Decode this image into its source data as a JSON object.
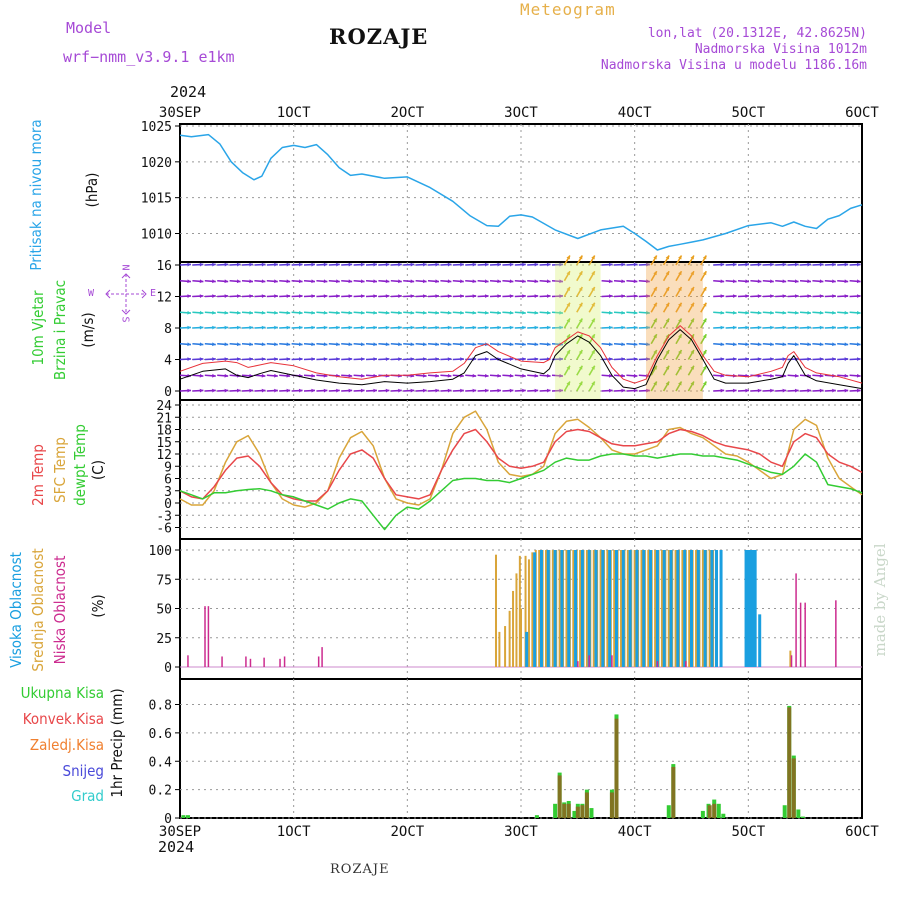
{
  "header": {
    "model_label": "Model",
    "model_name": "wrf−nmm_v3.9.1  e1km",
    "station": "ROZAJE",
    "meteogram": "Meteogram",
    "lonlat": "lon,lat (20.1312E, 42.8625N)",
    "altitude": "Nadmorska Visina 1012m",
    "model_altitude": "Nadmorska Visina u modelu 1186.16m"
  },
  "time_axis": {
    "year": "2024",
    "ticks": [
      "30SEP",
      "1OCT",
      "2OCT",
      "3OCT",
      "4OCT",
      "5OCT",
      "6OCT"
    ]
  },
  "panel_labels": {
    "pressure_name": "Pritisak na nivou mora",
    "pressure_unit": "(hPa)",
    "wind_name_1": "10m Vjetar",
    "wind_name_2": "Brzina i Pravac",
    "wind_unit": "(m/s)",
    "temp_2m": "2m Temp",
    "temp_sfc": "SFC Temp",
    "temp_dew": "dewpt Temp",
    "temp_unit": "(C)",
    "cloud_high": "Visoka Oblacnost",
    "cloud_mid": "Srednja Oblacnost",
    "cloud_low": "Niska Oblacnost",
    "cloud_unit": "(%)",
    "precip_unit": "1hr Precip (mm)",
    "precip_total": "Ukupna Kisa",
    "precip_conv": "Konvek.Kisa",
    "precip_frz": "Zaledj.Kisa",
    "precip_snow": "Snijeg",
    "precip_grad": "Grad",
    "compass": "N",
    "compass_w": "W",
    "compass_e": "E",
    "compass_s": "S"
  },
  "footer": {
    "station": "ROZAJE",
    "made_by": "made by Angel"
  },
  "colors": {
    "pressure": "#2aa5e8",
    "speed": "#000000",
    "gust": "#e8333a",
    "temp2m": "#e8474a",
    "sfc": "#d9a53a",
    "dew": "#33cc33",
    "cloud_high": "#1a9fe0",
    "cloud_mid": "#d9a53a",
    "cloud_low": "#cc2b8f",
    "total": "#33cc33",
    "conv": "#e8474a",
    "frz": "#f08030",
    "snow": "#4a4ad9",
    "grad": "#33cccc",
    "label_purple": "#a64ad6"
  },
  "chart_data": [
    {
      "type": "line",
      "title": "Pritisak na nivou mora",
      "ylabel": "(hPa)",
      "ylim": [
        1007,
        1026
      ],
      "yticks": [
        1010,
        1015,
        1020,
        1025
      ],
      "xlim_days": [
        0,
        6
      ],
      "x": [
        0,
        0.1,
        0.25,
        0.35,
        0.45,
        0.55,
        0.65,
        0.72,
        0.8,
        0.9,
        1.0,
        1.1,
        1.2,
        1.3,
        1.4,
        1.5,
        1.6,
        1.8,
        2.0,
        2.2,
        2.4,
        2.55,
        2.7,
        2.8,
        2.9,
        3.0,
        3.1,
        3.3,
        3.5,
        3.7,
        3.9,
        4.0,
        4.1,
        4.2,
        4.3,
        4.4,
        4.5,
        4.6,
        4.8,
        5.0,
        5.2,
        5.3,
        5.4,
        5.5,
        5.6,
        5.7,
        5.8,
        5.9,
        6.0
      ],
      "series": [
        {
          "values": [
            1023.7,
            1023.5,
            1023.8,
            1022.5,
            1020.0,
            1018.5,
            1017.5,
            1018.0,
            1020.5,
            1022.0,
            1022.3,
            1022.0,
            1022.4,
            1021.0,
            1019.2,
            1018.1,
            1018.3,
            1017.7,
            1017.9,
            1016.4,
            1014.5,
            1012.5,
            1011.1,
            1011.0,
            1012.4,
            1012.6,
            1012.3,
            1010.5,
            1009.3,
            1010.5,
            1011.0,
            1010.0,
            1008.9,
            1007.7,
            1008.2,
            1008.5,
            1008.8,
            1009.1,
            1010.0,
            1011.1,
            1011.5,
            1011.0,
            1011.6,
            1011.0,
            1010.7,
            1012.0,
            1012.5,
            1013.5,
            1014.0
          ]
        }
      ]
    },
    {
      "type": "line",
      "title": "10m Vjetar Brzina i Pravac",
      "ylabel": "(m/s)",
      "ylim": [
        -1,
        16
      ],
      "yticks": [
        0,
        4,
        8,
        12,
        16
      ],
      "x": [
        0,
        0.2,
        0.4,
        0.5,
        0.6,
        0.7,
        0.8,
        1.0,
        1.2,
        1.4,
        1.6,
        1.8,
        2.0,
        2.2,
        2.4,
        2.5,
        2.6,
        2.7,
        2.8,
        3.0,
        3.2,
        3.25,
        3.3,
        3.4,
        3.5,
        3.6,
        3.7,
        3.8,
        3.9,
        4.0,
        4.1,
        4.2,
        4.3,
        4.4,
        4.5,
        4.6,
        4.7,
        4.8,
        5.0,
        5.2,
        5.3,
        5.35,
        5.4,
        5.5,
        5.6,
        5.8,
        6.0
      ],
      "series": [
        {
          "name": "speed",
          "values": [
            1.5,
            2.5,
            2.8,
            2.0,
            1.7,
            2.2,
            2.6,
            2.0,
            1.4,
            1.0,
            0.8,
            1.2,
            1.0,
            1.2,
            1.5,
            2.3,
            4.5,
            5.0,
            4.0,
            2.8,
            2.2,
            2.8,
            4.5,
            6.0,
            7.0,
            6.2,
            4.5,
            2.0,
            0.5,
            0.3,
            0.8,
            4.0,
            6.5,
            7.8,
            6.5,
            4.0,
            1.5,
            1.0,
            1.0,
            1.5,
            1.8,
            3.5,
            4.5,
            2.0,
            1.3,
            0.8,
            0.3
          ]
        },
        {
          "name": "gust",
          "values": [
            2.5,
            3.5,
            3.8,
            3.6,
            3.0,
            3.3,
            3.6,
            3.2,
            2.3,
            1.8,
            1.5,
            2.0,
            2.0,
            2.3,
            2.5,
            3.5,
            5.5,
            6.0,
            5.0,
            3.8,
            3.6,
            4.0,
            5.5,
            6.5,
            7.5,
            7.0,
            5.5,
            3.0,
            1.5,
            1.0,
            1.5,
            4.5,
            7.0,
            8.3,
            7.0,
            4.5,
            2.5,
            2.0,
            1.8,
            2.5,
            3.0,
            4.5,
            5.0,
            3.0,
            2.3,
            1.8,
            1.0
          ]
        }
      ]
    },
    {
      "type": "line",
      "title": "2m Temp / SFC Temp / dewpt Temp",
      "ylabel": "(C)",
      "ylim": [
        -7.5,
        24
      ],
      "yticks": [
        -6,
        -3,
        0,
        3,
        6,
        9,
        12,
        15,
        18,
        21,
        24
      ],
      "x": [
        0,
        0.1,
        0.2,
        0.3,
        0.4,
        0.5,
        0.6,
        0.7,
        0.8,
        0.9,
        1.0,
        1.1,
        1.2,
        1.3,
        1.4,
        1.5,
        1.6,
        1.7,
        1.8,
        1.9,
        2.0,
        2.1,
        2.2,
        2.3,
        2.4,
        2.5,
        2.6,
        2.7,
        2.8,
        2.9,
        3.0,
        3.1,
        3.2,
        3.3,
        3.4,
        3.5,
        3.6,
        3.7,
        3.8,
        3.9,
        4.0,
        4.1,
        4.2,
        4.3,
        4.4,
        4.5,
        4.6,
        4.7,
        4.8,
        4.9,
        5.0,
        5.1,
        5.2,
        5.3,
        5.4,
        5.5,
        5.6,
        5.7,
        5.8,
        5.9,
        6.0
      ],
      "series": [
        {
          "name": "2m Temp",
          "values": [
            3,
            1.5,
            1,
            4,
            8,
            11,
            11.5,
            9,
            5,
            2,
            1,
            0.5,
            0.5,
            3,
            8,
            12,
            13,
            11,
            6,
            2,
            1.5,
            1,
            2,
            8,
            13,
            17,
            18,
            15,
            11,
            9,
            8.5,
            9,
            10,
            15,
            17.5,
            18,
            17.5,
            16,
            14.5,
            14,
            14,
            14.5,
            15,
            17,
            18,
            17.5,
            16.5,
            15,
            14,
            13.5,
            13,
            12,
            10,
            9,
            15,
            17,
            16,
            12,
            10,
            9,
            7.5
          ]
        },
        {
          "name": "SFC Temp",
          "values": [
            1,
            -0.5,
            -0.5,
            3,
            10,
            15,
            16.5,
            12,
            5,
            1,
            -0.5,
            -1,
            0,
            3,
            11,
            16,
            17.5,
            14,
            6,
            1,
            0,
            -0.5,
            1,
            8,
            17,
            21,
            22.5,
            18,
            10,
            7,
            6.5,
            7,
            9,
            17,
            20,
            20.5,
            18.5,
            16,
            13,
            12,
            12,
            13,
            14,
            18,
            18.5,
            17,
            16,
            14,
            12,
            11.5,
            10,
            8,
            6,
            7,
            18,
            20.5,
            19,
            11,
            6,
            4,
            2
          ]
        },
        {
          "name": "dewpt Temp",
          "values": [
            3,
            2,
            1,
            2.5,
            2.5,
            3,
            3.3,
            3.5,
            3,
            2,
            1.5,
            0.5,
            -0.5,
            -1.5,
            0,
            1,
            0.5,
            -3,
            -6.5,
            -3,
            -1,
            -1.5,
            0.5,
            3,
            5.5,
            6,
            6,
            5.5,
            5.5,
            5,
            6,
            7,
            8,
            10,
            11,
            10.5,
            10.5,
            11.5,
            12,
            12,
            11.5,
            11.5,
            11,
            11.5,
            12,
            12,
            11.5,
            11.5,
            11,
            10.5,
            9.5,
            8.5,
            7.5,
            7,
            9,
            12,
            10,
            4.5,
            4,
            3.5,
            2.5
          ]
        }
      ]
    },
    {
      "type": "bar",
      "title": "Visoka / Srednja / Niska Oblacnost",
      "ylabel": "(%)",
      "ylim": [
        0,
        100
      ],
      "yticks": [
        0,
        25,
        50,
        75,
        100
      ],
      "series": [
        {
          "name": "Niska Oblacnost",
          "x": [
            0.07,
            0.22,
            0.25,
            0.37,
            0.58,
            0.62,
            0.74,
            0.88,
            0.92,
            1.22,
            1.25,
            3.5,
            3.6,
            3.8,
            4.2,
            4.45,
            5.38,
            5.42,
            5.46,
            5.5,
            5.77
          ],
          "values": [
            10,
            52,
            52,
            9,
            9,
            7,
            8,
            7,
            9,
            9,
            17,
            5,
            10,
            10,
            5,
            5,
            10,
            80,
            55,
            55,
            57
          ]
        },
        {
          "name": "Srednja Oblacnost",
          "x": [
            2.78,
            2.81,
            2.86,
            2.9,
            2.93,
            2.96,
            2.99,
            3.0,
            3.04,
            3.07,
            3.1,
            3.13,
            3.16,
            3.19,
            3.22,
            3.25,
            3.28,
            3.31,
            3.34,
            3.37,
            3.4,
            3.43,
            3.46,
            3.49,
            3.52,
            3.55,
            3.58,
            3.61,
            3.64,
            3.67,
            3.7,
            3.73,
            3.76,
            3.79,
            3.82,
            3.85,
            3.88,
            3.91,
            3.94,
            3.97,
            4.0,
            4.03,
            4.06,
            4.09,
            4.12,
            4.15,
            4.18,
            4.21,
            4.24,
            4.27,
            4.3,
            4.33,
            4.36,
            4.39,
            4.42,
            4.45,
            4.48,
            4.51,
            4.54,
            4.57,
            4.6,
            4.63,
            4.66,
            4.69,
            4.72,
            5.37
          ],
          "values": [
            96,
            30,
            35,
            48,
            65,
            80,
            95,
            50,
            95,
            92,
            98,
            100,
            100,
            100,
            100,
            100,
            100,
            100,
            100,
            100,
            100,
            100,
            100,
            100,
            100,
            100,
            100,
            100,
            100,
            100,
            100,
            100,
            100,
            100,
            100,
            100,
            100,
            100,
            100,
            100,
            100,
            100,
            100,
            100,
            100,
            100,
            100,
            100,
            100,
            100,
            100,
            100,
            100,
            100,
            100,
            100,
            100,
            100,
            100,
            100,
            100,
            100,
            100,
            100,
            100,
            14
          ]
        },
        {
          "name": "Visoka Oblacnost",
          "x": [
            3.05,
            3.12,
            3.18,
            3.24,
            3.3,
            3.36,
            3.42,
            3.48,
            3.54,
            3.6,
            3.66,
            3.72,
            3.78,
            3.84,
            3.9,
            3.96,
            4.02,
            4.08,
            4.14,
            4.2,
            4.26,
            4.32,
            4.38,
            4.44,
            4.5,
            4.56,
            4.62,
            4.68,
            4.72,
            4.76,
            4.98,
            5.0,
            5.02,
            5.04,
            5.06,
            5.1
          ],
          "values": [
            30,
            98,
            100,
            100,
            100,
            100,
            100,
            100,
            100,
            100,
            100,
            100,
            100,
            100,
            100,
            100,
            100,
            100,
            100,
            100,
            100,
            100,
            100,
            100,
            100,
            100,
            100,
            100,
            100,
            100,
            100,
            100,
            100,
            100,
            100,
            45
          ]
        }
      ]
    },
    {
      "type": "bar",
      "title": "1hr Precip",
      "ylabel": "1hr Precip (mm)",
      "ylim": [
        0,
        0.92
      ],
      "yticks": [
        0,
        0.2,
        0.4,
        0.6,
        0.8
      ],
      "series": [
        {
          "name": "Ukupna Kisa",
          "x": [
            0.03,
            0.07,
            3.14,
            3.3,
            3.34,
            3.38,
            3.42,
            3.47,
            3.5,
            3.54,
            3.58,
            3.62,
            3.8,
            3.84,
            4.3,
            4.34,
            4.6,
            4.65,
            4.7,
            4.74,
            4.78,
            5.32,
            5.36,
            5.4,
            5.44,
            5.48
          ],
          "values": [
            0.02,
            0.02,
            0.02,
            0.1,
            0.32,
            0.11,
            0.12,
            0.05,
            0.1,
            0.1,
            0.2,
            0.07,
            0.2,
            0.73,
            0.09,
            0.38,
            0.05,
            0.1,
            0.13,
            0.1,
            0.03,
            0.09,
            0.79,
            0.44,
            0.06,
            0.01
          ]
        },
        {
          "name": "Konvek.Kisa",
          "x": [
            3.34,
            3.38,
            3.42,
            3.5,
            3.54,
            3.58,
            3.8,
            3.84,
            4.34,
            4.66,
            4.7,
            5.36,
            5.4
          ],
          "values": [
            0.3,
            0.1,
            0.1,
            0.08,
            0.09,
            0.18,
            0.18,
            0.7,
            0.36,
            0.09,
            0.1,
            0.78,
            0.42
          ]
        }
      ]
    }
  ]
}
